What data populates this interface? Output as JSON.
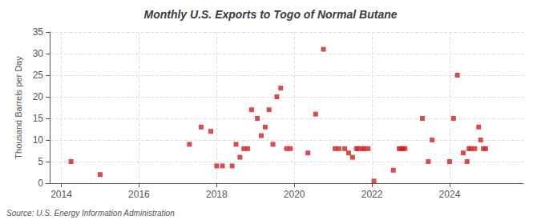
{
  "chart_data": {
    "type": "scatter",
    "title": "Monthly U.S. Exports to Togo of Normal Butane",
    "ylabel": "Thousand Barrels per Day",
    "source": "Source: U.S. Energy Information Administration",
    "color": "#cc2222",
    "marker": "square",
    "grid": true,
    "xlim": [
      2013.7,
      2025.9
    ],
    "xticks": [
      2014,
      2016,
      2018,
      2020,
      2022,
      2024
    ],
    "ylim": [
      0,
      35
    ],
    "yticks": [
      0,
      5,
      10,
      15,
      20,
      25,
      30,
      35
    ],
    "x": [
      2014.25,
      2015.0,
      2017.3,
      2017.6,
      2017.85,
      2018.0,
      2018.15,
      2018.4,
      2018.5,
      2018.6,
      2018.7,
      2018.8,
      2018.9,
      2019.05,
      2019.15,
      2019.25,
      2019.35,
      2019.45,
      2019.55,
      2019.65,
      2019.8,
      2019.9,
      2020.35,
      2020.55,
      2020.75,
      2021.05,
      2021.15,
      2021.3,
      2021.4,
      2021.5,
      2021.6,
      2021.65,
      2021.75,
      2021.8,
      2021.9,
      2022.05,
      2022.55,
      2022.7,
      2022.75,
      2022.8,
      2022.85,
      2023.3,
      2023.45,
      2023.55,
      2024.0,
      2024.1,
      2024.2,
      2024.35,
      2024.45,
      2024.5,
      2024.55,
      2024.65,
      2024.75,
      2024.8,
      2024.87,
      2024.93
    ],
    "values": [
      5,
      2,
      9,
      13,
      12,
      4,
      4,
      4,
      9,
      6,
      8,
      8,
      17,
      15,
      11,
      13,
      17,
      9,
      20,
      22,
      8,
      8,
      7,
      16,
      31,
      8,
      8,
      8,
      7,
      6,
      8,
      8,
      8,
      8,
      8,
      0.5,
      3,
      8,
      8,
      8,
      8,
      15,
      5,
      10,
      5,
      15,
      25,
      7,
      5,
      8,
      8,
      8,
      13,
      10,
      8,
      8
    ]
  }
}
